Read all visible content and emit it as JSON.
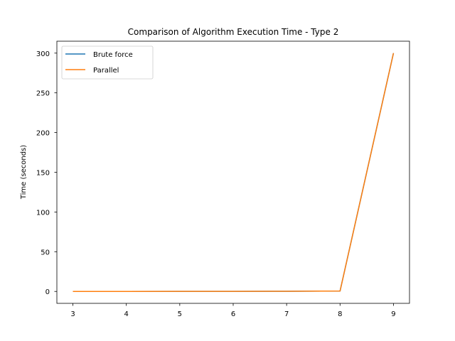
{
  "chart_data": {
    "type": "line",
    "title": "Comparison of Algorithm Execution Time - Type 2",
    "xlabel": "",
    "ylabel": "Time (seconds)",
    "x": [
      3,
      4,
      5,
      6,
      7,
      8,
      9
    ],
    "series": [
      {
        "name": "Brute force",
        "color": "#1f77b4",
        "values": [
          0.01,
          0.02,
          0.05,
          0.1,
          0.2,
          0.5,
          300
        ]
      },
      {
        "name": "Parallel",
        "color": "#ff7f0e",
        "values": [
          0.01,
          0.02,
          0.05,
          0.1,
          0.2,
          0.5,
          300
        ]
      }
    ],
    "xticks": [
      3,
      4,
      5,
      6,
      7,
      8,
      9
    ],
    "yticks": [
      0,
      50,
      100,
      150,
      200,
      250,
      300
    ],
    "xlim": [
      2.7,
      9.3
    ],
    "ylim": [
      -15,
      315
    ],
    "grid": false,
    "legend_position": "top-left"
  }
}
